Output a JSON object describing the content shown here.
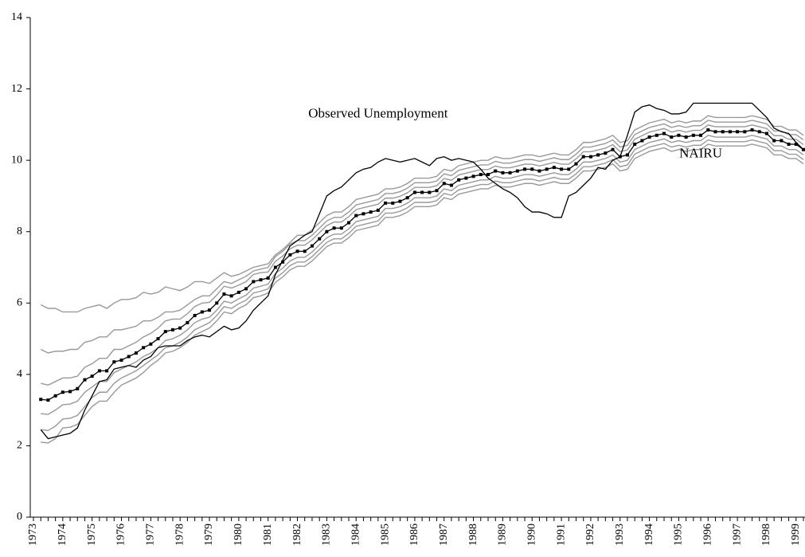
{
  "chart_data": {
    "type": "line",
    "categories": [
      "1973",
      null,
      null,
      null,
      "1974",
      null,
      null,
      null,
      "1975",
      null,
      null,
      null,
      "1976",
      null,
      null,
      null,
      "1977",
      null,
      null,
      null,
      "1978",
      null,
      null,
      null,
      "1979",
      null,
      null,
      null,
      "1980",
      null,
      null,
      null,
      "1981",
      null,
      null,
      null,
      "1982",
      null,
      null,
      null,
      "1983",
      null,
      null,
      null,
      "1984",
      null,
      null,
      null,
      "1985",
      null,
      null,
      null,
      "1986",
      null,
      null,
      null,
      "1987",
      null,
      null,
      null,
      "1988",
      null,
      null,
      null,
      "1989",
      null,
      null,
      null,
      "1990",
      null,
      null,
      null,
      "1991",
      null,
      null,
      null,
      "1992",
      null,
      null,
      null,
      "1993",
      null,
      null,
      null,
      "1994",
      null,
      null,
      null,
      "1995",
      null,
      null,
      null,
      "1996",
      null,
      null,
      null,
      "1997",
      null,
      null,
      null,
      "1998",
      null,
      null,
      null,
      "1999",
      null
    ],
    "ylim": [
      0,
      14
    ],
    "yticks": [
      0,
      2,
      4,
      6,
      8,
      10,
      12,
      14
    ],
    "grid": false,
    "series": [
      {
        "color": "#999999",
        "values": [
          null,
          5.95,
          5.85,
          5.85,
          5.75,
          5.75,
          5.75,
          5.85,
          5.9,
          5.95,
          5.85,
          6.0,
          6.1,
          6.1,
          6.15,
          6.3,
          6.25,
          6.3,
          6.45,
          6.4,
          6.35,
          6.45,
          6.6,
          6.6,
          6.55,
          6.7,
          6.85,
          6.75,
          6.8,
          6.9,
          7.0,
          7.05,
          7.1,
          7.35,
          7.5,
          7.7,
          7.9,
          7.9,
          8.05,
          8.25,
          8.45,
          8.55,
          8.55,
          8.7,
          8.9,
          8.95,
          9.0,
          9.05,
          9.2,
          9.2,
          9.25,
          9.35,
          9.5,
          9.5,
          9.5,
          9.55,
          9.75,
          9.7,
          9.85,
          9.9,
          9.95,
          10.0,
          10.0,
          10.1,
          10.05,
          10.05,
          10.1,
          10.15,
          10.15,
          10.1,
          10.15,
          10.2,
          10.15,
          10.15,
          10.3,
          10.5,
          10.5,
          10.55,
          10.6,
          10.7,
          10.5,
          10.55,
          10.85,
          10.95,
          11.05,
          11.1,
          11.15,
          11.05,
          11.1,
          11.05,
          11.1,
          11.1,
          11.25,
          11.2,
          11.2,
          11.2,
          11.2,
          11.2,
          11.25,
          11.2,
          11.15,
          10.95,
          10.95,
          10.85,
          10.85,
          10.7
        ]
      },
      {
        "color": "#999999",
        "values": [
          null,
          4.7,
          4.6,
          4.65,
          4.65,
          4.7,
          4.7,
          4.9,
          4.95,
          5.05,
          5.05,
          5.25,
          5.25,
          5.3,
          5.35,
          5.5,
          5.5,
          5.6,
          5.75,
          5.75,
          5.8,
          5.95,
          6.1,
          6.2,
          6.2,
          6.4,
          6.6,
          6.55,
          6.65,
          6.75,
          6.9,
          6.95,
          7.0,
          7.3,
          7.45,
          7.65,
          7.75,
          7.75,
          7.9,
          8.1,
          8.3,
          8.4,
          8.4,
          8.55,
          8.75,
          8.8,
          8.85,
          8.9,
          9.07,
          9.07,
          9.12,
          9.22,
          9.37,
          9.37,
          9.37,
          9.42,
          9.62,
          9.57,
          9.72,
          9.77,
          9.82,
          9.87,
          9.87,
          9.97,
          9.92,
          9.92,
          9.97,
          10.02,
          10.02,
          9.97,
          10.02,
          10.07,
          10.02,
          10.02,
          10.17,
          10.37,
          10.37,
          10.42,
          10.47,
          10.57,
          10.37,
          10.42,
          10.72,
          10.82,
          10.92,
          10.97,
          11.02,
          10.92,
          10.97,
          10.92,
          10.97,
          10.97,
          11.12,
          11.07,
          11.07,
          11.07,
          11.07,
          11.07,
          11.12,
          11.07,
          11.02,
          10.82,
          10.82,
          10.72,
          10.72,
          10.57
        ]
      },
      {
        "color": "#999999",
        "values": [
          null,
          3.75,
          3.7,
          3.8,
          3.9,
          3.9,
          3.95,
          4.2,
          4.3,
          4.45,
          4.45,
          4.7,
          4.7,
          4.8,
          4.9,
          5.05,
          5.15,
          5.3,
          5.5,
          5.55,
          5.55,
          5.7,
          5.9,
          6.0,
          6.02,
          6.22,
          6.47,
          6.42,
          6.5,
          6.6,
          6.8,
          6.85,
          6.87,
          7.17,
          7.32,
          7.52,
          7.62,
          7.62,
          7.77,
          7.97,
          8.17,
          8.27,
          8.27,
          8.42,
          8.62,
          8.67,
          8.72,
          8.77,
          8.94,
          8.94,
          8.99,
          9.09,
          9.24,
          9.24,
          9.24,
          9.29,
          9.49,
          9.44,
          9.59,
          9.64,
          9.69,
          9.74,
          9.74,
          9.84,
          9.79,
          9.79,
          9.84,
          9.89,
          9.89,
          9.84,
          9.89,
          9.94,
          9.89,
          9.89,
          10.04,
          10.24,
          10.24,
          10.29,
          10.34,
          10.44,
          10.24,
          10.29,
          10.59,
          10.69,
          10.79,
          10.84,
          10.89,
          10.79,
          10.84,
          10.79,
          10.84,
          10.84,
          10.99,
          10.94,
          10.94,
          10.94,
          10.94,
          10.94,
          10.99,
          10.94,
          10.89,
          10.69,
          10.69,
          10.59,
          10.59,
          10.44
        ]
      },
      {
        "color": "#999999",
        "values": [
          null,
          2.9,
          2.88,
          3.0,
          3.15,
          3.17,
          3.25,
          3.5,
          3.65,
          3.8,
          3.8,
          4.05,
          4.15,
          4.25,
          4.35,
          4.5,
          4.6,
          4.75,
          4.95,
          5.0,
          5.1,
          5.25,
          5.45,
          5.55,
          5.6,
          5.8,
          6.05,
          6.0,
          6.12,
          6.22,
          6.42,
          6.47,
          6.53,
          6.83,
          6.98,
          7.18,
          7.28,
          7.28,
          7.43,
          7.63,
          7.83,
          7.93,
          7.93,
          8.08,
          8.28,
          8.33,
          8.38,
          8.43,
          8.65,
          8.65,
          8.7,
          8.8,
          8.95,
          8.95,
          8.95,
          9.0,
          9.2,
          9.15,
          9.3,
          9.35,
          9.4,
          9.45,
          9.45,
          9.55,
          9.5,
          9.5,
          9.55,
          9.6,
          9.6,
          9.55,
          9.6,
          9.65,
          9.6,
          9.6,
          9.75,
          9.95,
          9.95,
          10.0,
          10.05,
          10.15,
          9.95,
          10.0,
          10.3,
          10.4,
          10.5,
          10.55,
          10.6,
          10.5,
          10.55,
          10.5,
          10.55,
          10.55,
          10.7,
          10.65,
          10.65,
          10.65,
          10.65,
          10.65,
          10.7,
          10.65,
          10.6,
          10.4,
          10.4,
          10.3,
          10.3,
          10.15
        ]
      },
      {
        "color": "#999999",
        "values": [
          null,
          2.45,
          2.43,
          2.55,
          2.75,
          2.77,
          2.85,
          3.1,
          3.35,
          3.5,
          3.5,
          3.75,
          3.9,
          4.0,
          4.1,
          4.25,
          4.4,
          4.55,
          4.75,
          4.8,
          4.9,
          5.05,
          5.25,
          5.35,
          5.45,
          5.65,
          5.9,
          5.85,
          5.98,
          6.08,
          6.28,
          6.33,
          6.4,
          6.7,
          6.85,
          7.05,
          7.15,
          7.15,
          7.3,
          7.5,
          7.7,
          7.8,
          7.8,
          7.95,
          8.15,
          8.2,
          8.25,
          8.3,
          8.52,
          8.52,
          8.57,
          8.67,
          8.82,
          8.82,
          8.82,
          8.87,
          9.07,
          9.02,
          9.17,
          9.22,
          9.27,
          9.32,
          9.32,
          9.42,
          9.37,
          9.37,
          9.42,
          9.47,
          9.47,
          9.42,
          9.47,
          9.52,
          9.47,
          9.47,
          9.62,
          9.82,
          9.82,
          9.87,
          9.92,
          10.02,
          9.82,
          9.87,
          10.17,
          10.27,
          10.37,
          10.42,
          10.47,
          10.37,
          10.42,
          10.37,
          10.42,
          10.42,
          10.57,
          10.52,
          10.52,
          10.52,
          10.52,
          10.52,
          10.57,
          10.52,
          10.47,
          10.27,
          10.27,
          10.17,
          10.17,
          10.02
        ]
      },
      {
        "color": "#999999",
        "values": [
          null,
          2.1,
          2.08,
          2.2,
          2.5,
          2.52,
          2.6,
          2.85,
          3.1,
          3.25,
          3.25,
          3.5,
          3.7,
          3.8,
          3.9,
          4.05,
          4.25,
          4.4,
          4.6,
          4.65,
          4.75,
          4.9,
          5.1,
          5.2,
          5.3,
          5.5,
          5.75,
          5.7,
          5.85,
          5.95,
          6.15,
          6.2,
          6.28,
          6.58,
          6.73,
          6.93,
          7.03,
          7.03,
          7.18,
          7.38,
          7.58,
          7.68,
          7.68,
          7.83,
          8.03,
          8.08,
          8.13,
          8.18,
          8.4,
          8.4,
          8.45,
          8.55,
          8.7,
          8.7,
          8.7,
          8.75,
          8.95,
          8.9,
          9.05,
          9.1,
          9.15,
          9.2,
          9.2,
          9.3,
          9.25,
          9.25,
          9.3,
          9.35,
          9.35,
          9.3,
          9.35,
          9.4,
          9.35,
          9.35,
          9.5,
          9.7,
          9.7,
          9.75,
          9.8,
          9.9,
          9.7,
          9.75,
          10.05,
          10.15,
          10.25,
          10.3,
          10.35,
          10.25,
          10.3,
          10.25,
          10.3,
          10.3,
          10.45,
          10.4,
          10.4,
          10.4,
          10.4,
          10.4,
          10.45,
          10.4,
          10.35,
          10.15,
          10.15,
          10.05,
          10.05,
          9.9
        ]
      },
      {
        "name": "Observed Unemployment",
        "color": "#000000",
        "values": [
          null,
          2.45,
          2.2,
          2.25,
          2.3,
          2.35,
          2.5,
          3.0,
          3.4,
          3.8,
          3.85,
          4.15,
          4.2,
          4.25,
          4.2,
          4.4,
          4.5,
          4.75,
          4.8,
          4.8,
          4.8,
          4.95,
          5.05,
          5.1,
          5.05,
          5.2,
          5.35,
          5.25,
          5.3,
          5.5,
          5.8,
          6.0,
          6.2,
          6.8,
          7.2,
          7.6,
          7.75,
          7.9,
          8.0,
          8.5,
          9.0,
          9.15,
          9.25,
          9.45,
          9.65,
          9.75,
          9.8,
          9.95,
          10.05,
          10.0,
          9.95,
          10.0,
          10.05,
          9.95,
          9.85,
          10.05,
          10.1,
          10.0,
          10.05,
          10.0,
          9.95,
          9.75,
          9.5,
          9.35,
          9.2,
          9.1,
          8.95,
          8.7,
          8.55,
          8.55,
          8.5,
          8.4,
          8.4,
          9.0,
          9.1,
          9.3,
          9.5,
          9.8,
          9.75,
          10.0,
          10.1,
          10.7,
          11.35,
          11.5,
          11.55,
          11.45,
          11.4,
          11.3,
          11.3,
          11.35,
          11.6,
          11.6,
          11.6,
          11.6,
          11.6,
          11.6,
          11.6,
          11.6,
          11.6,
          11.4,
          11.2,
          10.9,
          10.8,
          10.75,
          10.5,
          10.3
        ]
      },
      {
        "name": "NAIRU",
        "color": "#000000",
        "marker": "square",
        "values": [
          null,
          3.3,
          3.28,
          3.4,
          3.5,
          3.52,
          3.6,
          3.85,
          3.95,
          4.1,
          4.1,
          4.35,
          4.4,
          4.5,
          4.6,
          4.75,
          4.85,
          5.0,
          5.2,
          5.25,
          5.3,
          5.45,
          5.65,
          5.75,
          5.8,
          6.0,
          6.25,
          6.2,
          6.3,
          6.4,
          6.6,
          6.65,
          6.7,
          7.0,
          7.15,
          7.35,
          7.45,
          7.45,
          7.6,
          7.8,
          8.0,
          8.1,
          8.1,
          8.25,
          8.45,
          8.5,
          8.55,
          8.6,
          8.8,
          8.8,
          8.85,
          8.95,
          9.1,
          9.1,
          9.1,
          9.15,
          9.35,
          9.3,
          9.45,
          9.5,
          9.55,
          9.6,
          9.6,
          9.7,
          9.65,
          9.65,
          9.7,
          9.75,
          9.75,
          9.7,
          9.75,
          9.8,
          9.75,
          9.75,
          9.9,
          10.1,
          10.1,
          10.15,
          10.2,
          10.3,
          10.1,
          10.15,
          10.45,
          10.55,
          10.65,
          10.7,
          10.75,
          10.65,
          10.7,
          10.65,
          10.7,
          10.7,
          10.85,
          10.8,
          10.8,
          10.8,
          10.8,
          10.8,
          10.85,
          10.8,
          10.75,
          10.55,
          10.55,
          10.45,
          10.45,
          10.3
        ]
      }
    ]
  }
}
